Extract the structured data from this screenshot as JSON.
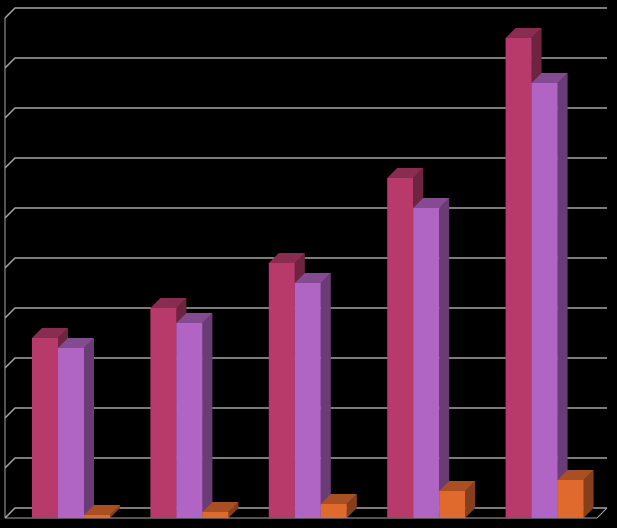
{
  "chart_data": {
    "type": "bar3d",
    "categories": [
      null,
      null,
      null,
      null,
      null
    ],
    "series": [
      {
        "color": "#b83a6a",
        "values": [
          3.6,
          4.2,
          5.1,
          6.8,
          9.6
        ]
      },
      {
        "color": "#b064c4",
        "values": [
          3.4,
          3.9,
          4.7,
          6.2,
          8.7
        ]
      },
      {
        "color": "#e0692e",
        "values": [
          0.06,
          0.12,
          0.28,
          0.54,
          0.76
        ]
      }
    ],
    "ylim": [
      0,
      10
    ],
    "yticks": [
      0,
      1,
      2,
      3,
      4,
      5,
      6,
      7,
      8,
      9,
      10
    ],
    "grid": true,
    "background": "#000000",
    "grid_color": "#a6a6a6"
  }
}
